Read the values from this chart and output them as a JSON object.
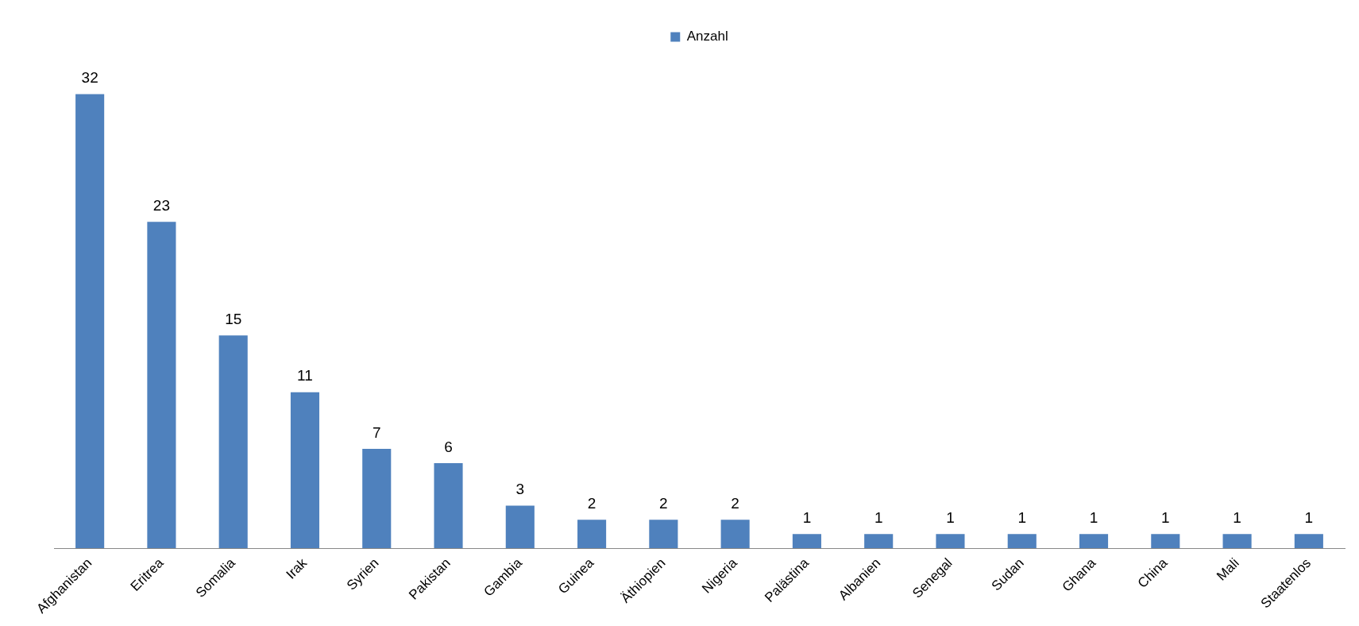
{
  "chart_data": {
    "type": "bar",
    "categories": [
      "Afghanistan",
      "Eritrea",
      "Somalia",
      "Irak",
      "Syrien",
      "Pakistan",
      "Gambia",
      "Guinea",
      "Äthiopien",
      "Nigeria",
      "Palästina",
      "Albanien",
      "Senegal",
      "Sudan",
      "Ghana",
      "China",
      "Mali",
      "Staatenlos"
    ],
    "series": [
      {
        "name": "Anzahl",
        "color": "#4f81bd",
        "values": [
          32,
          23,
          15,
          11,
          7,
          6,
          3,
          2,
          2,
          2,
          1,
          1,
          1,
          1,
          1,
          1,
          1,
          1
        ]
      }
    ],
    "data_labels": true,
    "legend": "top",
    "grid": false
  }
}
